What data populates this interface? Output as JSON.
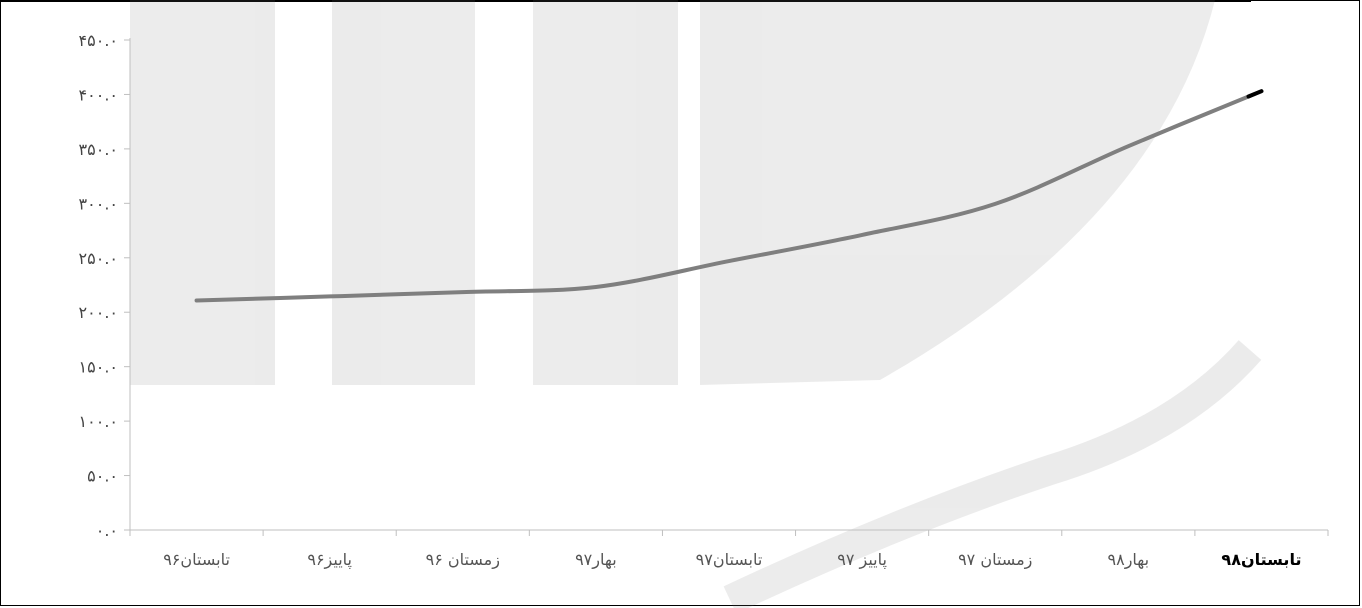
{
  "chart_data": {
    "type": "line",
    "categories": [
      "تابستان۹۶",
      "پاییز۹۶",
      "زمستان ۹۶",
      "بهار۹۷",
      "تابستان۹۷",
      "پاییز ۹۷",
      "زمستان ۹۷",
      "بهار۹۸",
      "تابستان۹۸"
    ],
    "series": [
      {
        "values": [
          210.8,
          214.5,
          218.5,
          223.2,
          247.0,
          271.0,
          299.5,
          352.5,
          403.0
        ]
      }
    ],
    "y_ticks": [
      "۰.۰",
      "۵۰.۰",
      "۱۰۰.۰",
      "۱۵۰.۰",
      "۲۰۰.۰",
      "۲۵۰.۰",
      "۳۰۰.۰",
      "۳۵۰.۰",
      "۴۰۰.۰",
      "۴۵۰.۰"
    ],
    "ylim": [
      0,
      450
    ],
    "grid": false,
    "line_color": "#7f7f7f",
    "end_color": "#000000",
    "bold_last_label": true
  }
}
